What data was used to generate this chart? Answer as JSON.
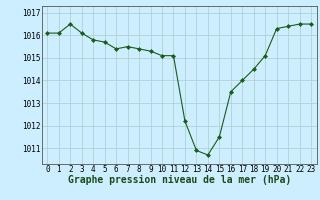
{
  "x": [
    0,
    1,
    2,
    3,
    4,
    5,
    6,
    7,
    8,
    9,
    10,
    11,
    12,
    13,
    14,
    15,
    16,
    17,
    18,
    19,
    20,
    21,
    22,
    23
  ],
  "y": [
    1016.1,
    1016.1,
    1016.5,
    1016.1,
    1015.8,
    1015.7,
    1015.4,
    1015.5,
    1015.4,
    1015.3,
    1015.1,
    1015.1,
    1012.2,
    1010.9,
    1010.7,
    1011.5,
    1013.5,
    1014.0,
    1014.5,
    1015.1,
    1016.3,
    1016.4,
    1016.5,
    1016.5
  ],
  "line_color": "#1a5c1a",
  "marker": "D",
  "marker_size": 2.0,
  "background_color": "#cceeff",
  "grid_color": "#aacccc",
  "xlabel": "Graphe pression niveau de la mer (hPa)",
  "xlabel_fontsize": 7,
  "ytick_labels": [
    "1011",
    "1012",
    "1013",
    "1014",
    "1015",
    "1016",
    "1017"
  ],
  "ytick_values": [
    1011,
    1012,
    1013,
    1014,
    1015,
    1016,
    1017
  ],
  "ylim": [
    1010.3,
    1017.3
  ],
  "xlim": [
    -0.5,
    23.5
  ],
  "xtick_labels": [
    "0",
    "1",
    "2",
    "3",
    "4",
    "5",
    "6",
    "7",
    "8",
    "9",
    "10",
    "11",
    "12",
    "13",
    "14",
    "15",
    "16",
    "17",
    "18",
    "19",
    "20",
    "21",
    "22",
    "23"
  ],
  "tick_fontsize": 5.5,
  "line_width": 0.8
}
